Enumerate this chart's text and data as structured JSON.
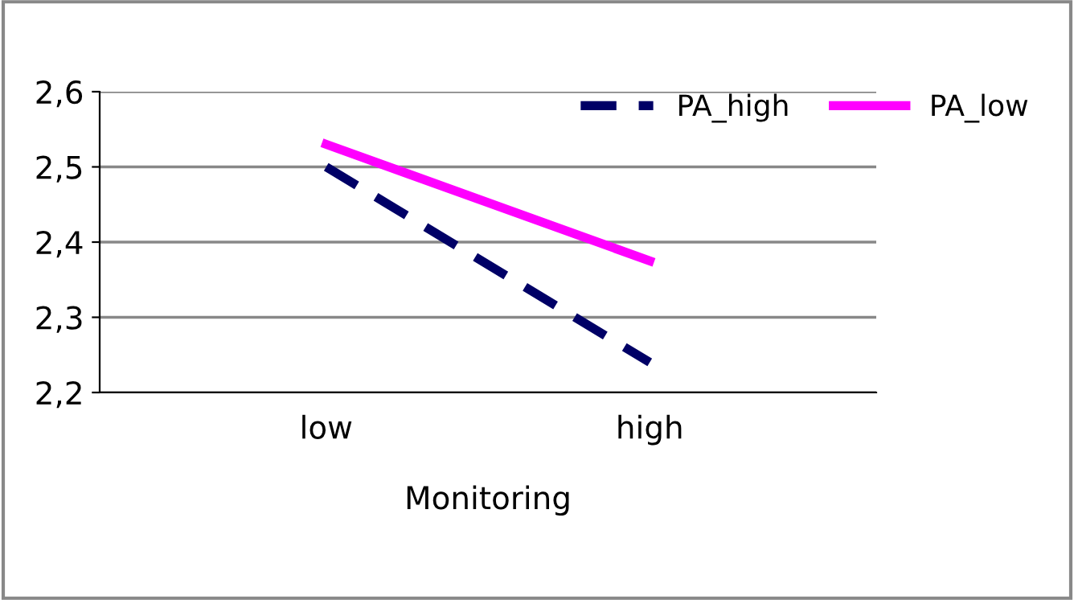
{
  "chart_data": {
    "type": "line",
    "xlabel": "Monitoring",
    "categories": [
      "low",
      "high"
    ],
    "series": [
      {
        "name": "PA_high",
        "color": "#000066",
        "line_style": "dashed",
        "values": [
          2.5,
          2.24
        ]
      },
      {
        "name": "PA_low",
        "color": "#ff00ff",
        "line_style": "solid",
        "values": [
          2.53,
          2.375
        ]
      }
    ],
    "ylim": [
      2.2,
      2.6
    ],
    "yticks": [
      {
        "value": 2.2,
        "label": "2,2"
      },
      {
        "value": 2.3,
        "label": "2,3"
      },
      {
        "value": 2.4,
        "label": "2,4"
      },
      {
        "value": 2.5,
        "label": "2,5"
      },
      {
        "value": 2.6,
        "label": "2,6"
      }
    ],
    "grid": "y",
    "legend": "top right",
    "marker": "none"
  }
}
